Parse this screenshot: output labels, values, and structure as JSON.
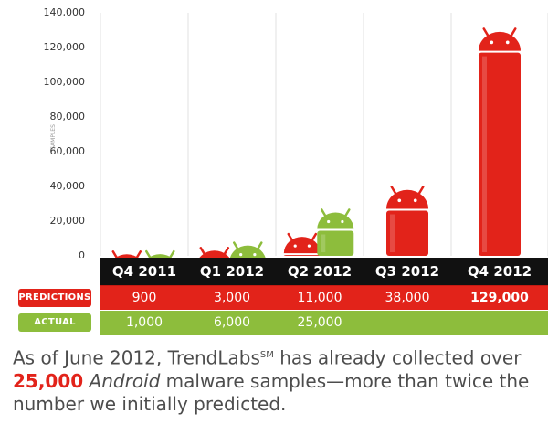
{
  "chart_data": {
    "type": "bar",
    "categories": [
      "Q4 2011",
      "Q1 2012",
      "Q2 2012",
      "Q3 2012",
      "Q4 2012"
    ],
    "series": [
      {
        "name": "PREDICTIONS",
        "values": [
          900,
          3000,
          11000,
          38000,
          129000
        ],
        "color": "#e2231a"
      },
      {
        "name": "ACTUAL",
        "values": [
          1000,
          6000,
          25000,
          null,
          null
        ],
        "color": "#8dbd3c"
      }
    ],
    "ylabel": "SAMPLES",
    "ylim": [
      0,
      140000
    ],
    "yticks": [
      "0",
      "20,000",
      "40,000",
      "60,000",
      "80,000",
      "100,000",
      "120,000",
      "140,000"
    ],
    "grid": "vertical separators"
  },
  "table": {
    "quarters": [
      "Q4 2011",
      "Q1 2012",
      "Q2 2012",
      "Q3 2012",
      "Q4 2012"
    ],
    "predictions_label": "PREDICTIONS",
    "predictions": [
      "900",
      "3,000",
      "11,000",
      "38,000",
      "129,000"
    ],
    "actual_label": "ACTUAL",
    "actual": [
      "1,000",
      "6,000",
      "25,000",
      "",
      ""
    ]
  },
  "caption": {
    "line1_a": "As of June 2012, TrendLabs",
    "line1_sup": "SM",
    "line1_b": " has already collected over",
    "highlight": "25,000",
    "italic": "Android",
    "line2_b": " malware samples—more than twice the",
    "line3": "number we initially predicted."
  },
  "colors": {
    "red": "#e2231a",
    "green": "#8dbd3c",
    "black": "#111111"
  }
}
